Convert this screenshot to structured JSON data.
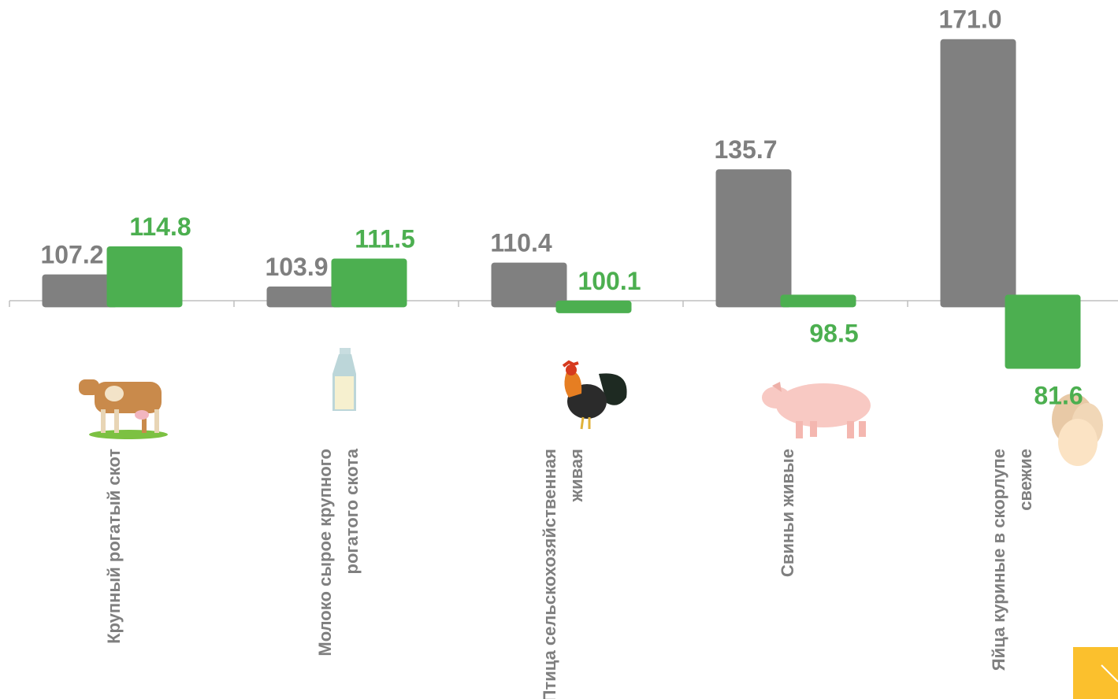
{
  "chart_data": {
    "type": "bar",
    "categories": [
      "Крупный рогатый скот",
      "Молоко сырое крупного рогатого скота",
      "Птица сельскохозяйственная живая",
      "Свиньи живые",
      "Яйца куриные в скорлупе свежие"
    ],
    "series": [
      {
        "color": "#808080",
        "values": [
          107.2,
          103.9,
          110.4,
          135.7,
          171.0
        ],
        "value_labels": [
          "107.2",
          "103.9",
          "110.4",
          "135.7",
          "171.0"
        ]
      },
      {
        "color": "#4caf50",
        "values": [
          114.8,
          111.5,
          100.1,
          98.5,
          81.6
        ]
      }
    ],
    "base": 100,
    "ylim": [
      80,
      175
    ]
  }
}
